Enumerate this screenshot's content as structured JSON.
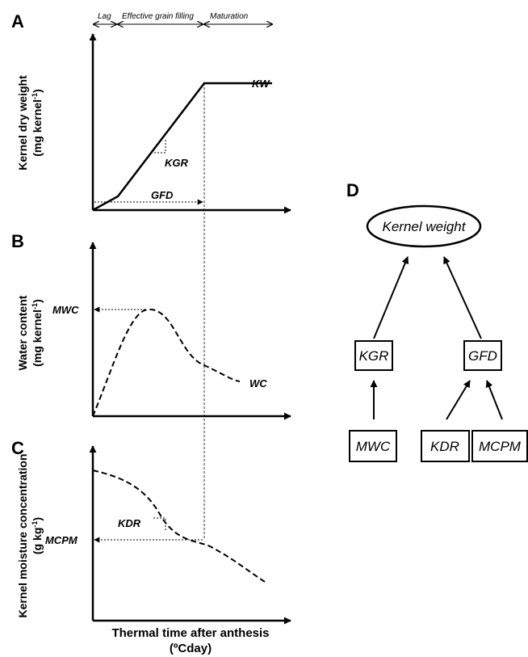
{
  "panels": {
    "a": {
      "letter": "A",
      "ylabel_line1": "Kernel dry weight",
      "ylabel_line2": "(mg kernel",
      "ylabel_sup": "-1",
      "ylabel_close": ")",
      "phases": [
        "Lag",
        "Effective grain filling",
        "Maturation"
      ],
      "annotations": {
        "kw": "KW",
        "kgr": "KGR",
        "gfd": "GFD"
      }
    },
    "b": {
      "letter": "B",
      "ylabel_line1": "Water content",
      "ylabel_line2": "(mg kernel",
      "ylabel_sup": "-1",
      "ylabel_close": ")",
      "annotations": {
        "mwc": "MWC",
        "wc": "WC"
      }
    },
    "c": {
      "letter": "C",
      "ylabel_line1": "Kernel moisture concentration",
      "ylabel_line2": "(g kg",
      "ylabel_sup": "-1",
      "ylabel_close": ")",
      "annotations": {
        "kdr": "KDR",
        "mcpm": "MCPM"
      }
    },
    "d": {
      "letter": "D",
      "root": "Kernel weight",
      "mid": [
        "KGR",
        "GFD"
      ],
      "leaves": [
        "MWC",
        "KDR",
        "MCPM"
      ]
    }
  },
  "xlabel_line1": "Thermal time after anthesis",
  "xlabel_line2": "(ºCday)"
}
